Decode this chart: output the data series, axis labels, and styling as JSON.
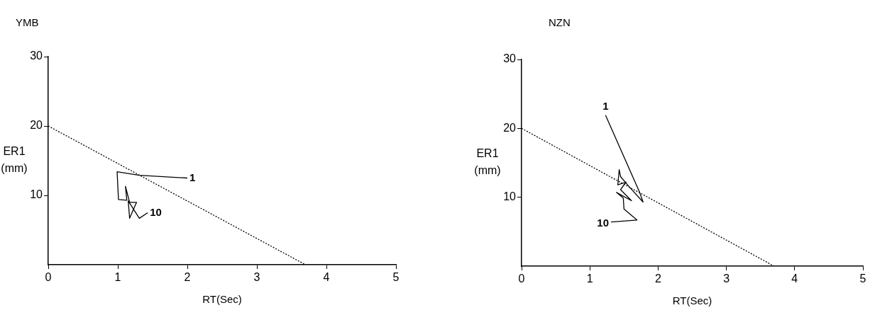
{
  "chart_data": [
    {
      "type": "line",
      "title": "YMB",
      "xlabel": "RT(Sec)",
      "ylabel": "ER1 (mm)",
      "series": [
        {
          "color": "#000000",
          "line_style": "dotted",
          "x": [
            0,
            3.7
          ],
          "values": [
            20,
            0
          ]
        },
        {
          "color": "#000000",
          "line_style": "solid",
          "x": [
            2.0,
            1.31,
            0.99,
            1.01,
            1.13,
            1.11,
            1.17,
            1.27,
            1.17,
            1.15,
            1.31,
            1.43
          ],
          "values": [
            12.5,
            12.9,
            13.4,
            9.4,
            9.3,
            11.3,
            9.0,
            9.0,
            6.7,
            9.2,
            6.7,
            7.5
          ]
        }
      ],
      "annotations": [
        {
          "text": "1",
          "x": 2.0,
          "y": 12.5
        },
        {
          "text": "10",
          "x": 1.43,
          "y": 7.5
        }
      ],
      "xlim": [
        0,
        5
      ],
      "xticks": [
        0,
        1,
        2,
        3,
        4,
        5
      ],
      "ylim": [
        0,
        30
      ],
      "yticks": [
        10,
        20,
        30
      ],
      "grid": false,
      "legend": false,
      "marker": "none"
    },
    {
      "type": "line",
      "title": "NZN",
      "xlabel": "RT(Sec)",
      "ylabel": "ER1 (mm)",
      "series": [
        {
          "color": "#000000",
          "line_style": "dotted",
          "x": [
            0,
            3.7
          ],
          "values": [
            20,
            0
          ]
        },
        {
          "color": "#000000",
          "line_style": "solid",
          "x": [
            1.23,
            1.73,
            1.78,
            1.57,
            1.45,
            1.43,
            1.41,
            1.53,
            1.45,
            1.61,
            1.39,
            1.49,
            1.5,
            1.69,
            1.31
          ],
          "values": [
            21.9,
            10.7,
            9.3,
            11.6,
            13.0,
            14.0,
            11.8,
            12.2,
            11.1,
            9.5,
            10.7,
            9.9,
            8.3,
            6.7,
            6.4
          ]
        }
      ],
      "annotations": [
        {
          "text": "1",
          "x": 1.23,
          "y": 21.9
        },
        {
          "text": "10",
          "x": 1.31,
          "y": 6.4
        }
      ],
      "xlim": [
        0,
        5
      ],
      "xticks": [
        0,
        1,
        2,
        3,
        4,
        5
      ],
      "ylim": [
        0,
        30
      ],
      "yticks": [
        10,
        20,
        30
      ],
      "grid": false,
      "legend": false,
      "marker": "none"
    }
  ]
}
